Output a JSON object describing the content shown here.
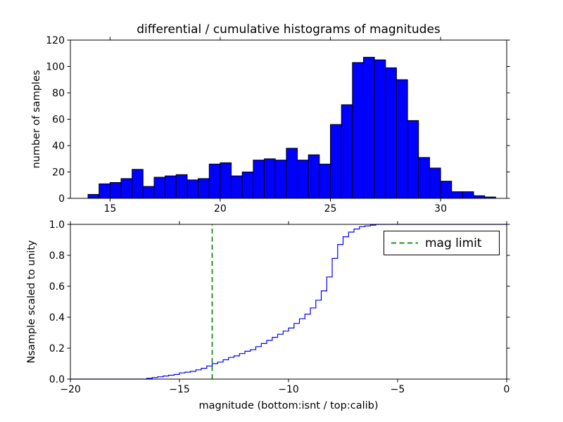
{
  "figure": {
    "background": "#ffffff",
    "frame_color": "#000000"
  },
  "chart_data": [
    {
      "type": "bar",
      "title": "differential / cumulative histograms of magnitudes",
      "ylabel": "number of samples",
      "xlabel": "",
      "xlim": [
        13.2,
        33.0
      ],
      "ylim": [
        0,
        120
      ],
      "xticks": [
        15,
        20,
        25,
        30
      ],
      "xtick_labels": [
        "15",
        "20",
        "25",
        "30"
      ],
      "yticks": [
        0,
        20,
        40,
        60,
        80,
        100,
        120
      ],
      "ytick_labels": [
        "0",
        "20",
        "40",
        "60",
        "80",
        "100",
        "120"
      ],
      "bin_start": 14.0,
      "bin_width": 0.5,
      "values": [
        3,
        11,
        12,
        15,
        22,
        9,
        16,
        17,
        18,
        14,
        15,
        26,
        27,
        17,
        20,
        29,
        30,
        29,
        38,
        29,
        33,
        26,
        56,
        71,
        103,
        107,
        105,
        99,
        90,
        59,
        31,
        23,
        13,
        5,
        5,
        2,
        1
      ],
      "bar_color": "#0000ff",
      "bar_edge_color": "#000000",
      "grid": false,
      "legend": null
    },
    {
      "type": "line",
      "style": "step",
      "title": "",
      "ylabel": "Nsample scaled to unity",
      "xlabel": "magnitude (bottom:isnt / top:calib)",
      "xlim": [
        -20,
        0
      ],
      "ylim": [
        0.0,
        1.0
      ],
      "xticks": [
        -20,
        -15,
        -10,
        -5,
        0
      ],
      "xtick_labels": [
        "−20",
        "−15",
        "−10",
        "−5",
        "0"
      ],
      "yticks": [
        0.0,
        0.2,
        0.4,
        0.6,
        0.8,
        1.0
      ],
      "ytick_labels": [
        "0.0",
        "0.2",
        "0.4",
        "0.6",
        "0.8",
        "1.0"
      ],
      "line_color": "#0000ff",
      "x": [
        -20,
        -16.5,
        -16.25,
        -16,
        -15.75,
        -15.5,
        -15.25,
        -15,
        -14.75,
        -14.5,
        -14.25,
        -14,
        -13.75,
        -13.5,
        -13.25,
        -13,
        -12.75,
        -12.5,
        -12.25,
        -12,
        -11.75,
        -11.5,
        -11.25,
        -11,
        -10.75,
        -10.5,
        -10.25,
        -10,
        -9.75,
        -9.5,
        -9.25,
        -9,
        -8.75,
        -8.5,
        -8.25,
        -8,
        -7.75,
        -7.5,
        -7.25,
        -7,
        -6.75,
        -6.5,
        -6.25,
        -6,
        0
      ],
      "y": [
        0,
        0.005,
        0.01,
        0.015,
        0.02,
        0.025,
        0.03,
        0.04,
        0.045,
        0.05,
        0.06,
        0.07,
        0.085,
        0.1,
        0.11,
        0.125,
        0.14,
        0.15,
        0.165,
        0.18,
        0.19,
        0.21,
        0.23,
        0.25,
        0.27,
        0.29,
        0.31,
        0.33,
        0.36,
        0.39,
        0.42,
        0.46,
        0.51,
        0.57,
        0.66,
        0.78,
        0.87,
        0.92,
        0.95,
        0.97,
        0.985,
        0.99,
        0.995,
        1.0,
        1.0
      ],
      "vline": {
        "x": -13.5,
        "color": "#008000",
        "style": "dashed"
      },
      "legend": {
        "label": "mag limit",
        "position": "upper right",
        "sample_color": "#008000",
        "sample_style": "dashed"
      },
      "grid": false
    }
  ]
}
